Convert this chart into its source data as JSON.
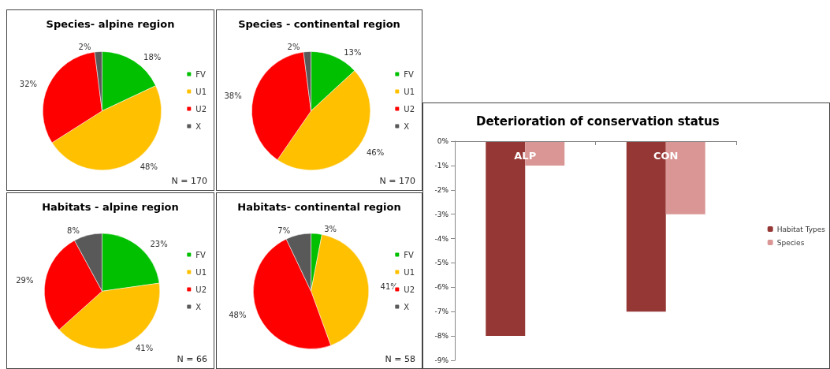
{
  "chart_data": [
    {
      "type": "pie",
      "title": "Species- alpine region",
      "categories": [
        "FV",
        "U1",
        "U2",
        "X"
      ],
      "values": [
        18,
        48,
        32,
        2
      ],
      "value_labels": [
        "18%",
        "48%",
        "32%",
        "2%"
      ],
      "colors": [
        "#00c000",
        "#ffc000",
        "#ff0000",
        "#595959"
      ],
      "legend": "right",
      "annotations": [
        "N = 170"
      ]
    },
    {
      "type": "pie",
      "title": "Species - continental region",
      "categories": [
        "FV",
        "U1",
        "U2",
        "X"
      ],
      "values": [
        13,
        46,
        38,
        2
      ],
      "value_labels": [
        "13%",
        "46%",
        "38%",
        "2%"
      ],
      "colors": [
        "#00c000",
        "#ffc000",
        "#ff0000",
        "#595959"
      ],
      "legend": "right",
      "annotations": [
        "N = 170"
      ]
    },
    {
      "type": "pie",
      "title": "Habitats - alpine region",
      "categories": [
        "FV",
        "U1",
        "U2",
        "X"
      ],
      "values": [
        23,
        41,
        29,
        8
      ],
      "value_labels": [
        "23%",
        "41%",
        "29%",
        "8%"
      ],
      "colors": [
        "#00c000",
        "#ffc000",
        "#ff0000",
        "#595959"
      ],
      "legend": "right",
      "annotations": [
        "N = 66"
      ]
    },
    {
      "type": "pie",
      "title": "Habitats- continental region",
      "categories": [
        "FV",
        "U1",
        "U2",
        "X"
      ],
      "values": [
        3,
        41,
        48,
        7
      ],
      "value_labels": [
        "3%",
        "41%",
        "48%",
        "7%"
      ],
      "colors": [
        "#00c000",
        "#ffc000",
        "#ff0000",
        "#595959"
      ],
      "legend": "right",
      "annotations": [
        "N = 58"
      ]
    },
    {
      "type": "bar",
      "title": "Deterioration of conservation status",
      "categories": [
        "ALP",
        "CON"
      ],
      "series": [
        {
          "name": "Habitat Types",
          "color": "#953735",
          "values": [
            -8,
            -7
          ]
        },
        {
          "name": "Species",
          "color": "#d99694",
          "values": [
            -1,
            -3
          ]
        }
      ],
      "ylim": [
        -9,
        0
      ],
      "yticks": [
        {
          "value": 0,
          "label": "0%"
        },
        {
          "value": -1,
          "label": "-1%"
        },
        {
          "value": -2,
          "label": "-2%"
        },
        {
          "value": -3,
          "label": "-3%"
        },
        {
          "value": -4,
          "label": "-4%"
        },
        {
          "value": -5,
          "label": "-5%"
        },
        {
          "value": -6,
          "label": "-6%"
        },
        {
          "value": -7,
          "label": "-7%"
        },
        {
          "value": -8,
          "label": "-8%"
        },
        {
          "value": -9,
          "label": "-9%"
        }
      ],
      "grid": false,
      "legend": "right"
    }
  ]
}
